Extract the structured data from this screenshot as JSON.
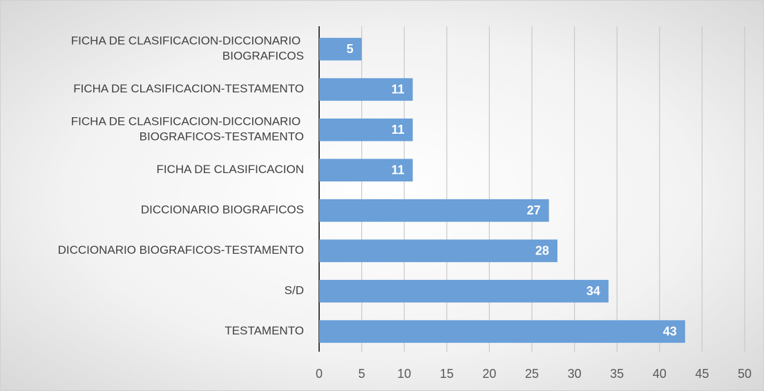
{
  "chart_data": {
    "type": "barh",
    "categories": [
      "FICHA DE CLASIFICACION-DICCIONARIO BIOGRAFICOS",
      "FICHA DE CLASIFICACION-TESTAMENTO",
      "FICHA DE CLASIFICACION-DICCIONARIO BIOGRAFICOS-TESTAMENTO",
      "FICHA DE CLASIFICACION",
      "DICCIONARIO BIOGRAFICOS",
      "DICCIONARIO BIOGRAFICOS-TESTAMENTO",
      "S/D",
      "TESTAMENTO"
    ],
    "values": [
      5,
      11,
      11,
      11,
      27,
      28,
      34,
      43
    ],
    "color": "#6a9fd8",
    "xlim": [
      0,
      50
    ],
    "xticks": [
      0,
      5,
      10,
      15,
      20,
      25,
      30,
      35,
      40,
      45,
      50
    ],
    "grid": true
  }
}
